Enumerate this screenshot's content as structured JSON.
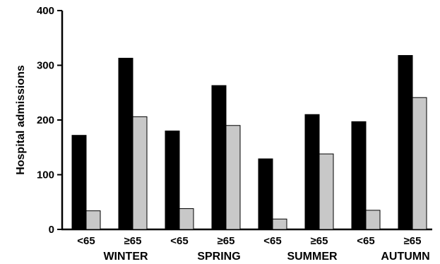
{
  "chart_data": {
    "type": "bar",
    "ylabel": "Hospital admissions",
    "ylim": [
      0,
      400
    ],
    "yticks": [
      "0",
      "100",
      "200",
      "300",
      "400"
    ],
    "groups": [
      {
        "season": "WINTER",
        "bars": [
          {
            "label": "<65",
            "black": 172,
            "gray": 34
          },
          {
            "label": "≥65",
            "black": 313,
            "gray": 206
          }
        ]
      },
      {
        "season": "SPRING",
        "bars": [
          {
            "label": "<65",
            "black": 180,
            "gray": 38
          },
          {
            "label": "≥65",
            "black": 263,
            "gray": 190
          }
        ]
      },
      {
        "season": "SUMMER",
        "bars": [
          {
            "label": "<65",
            "black": 129,
            "gray": 19
          },
          {
            "label": "≥65",
            "black": 210,
            "gray": 138
          }
        ]
      },
      {
        "season": "AUTUMN",
        "bars": [
          {
            "label": "<65",
            "black": 197,
            "gray": 35
          },
          {
            "label": "≥65",
            "black": 318,
            "gray": 241
          }
        ]
      }
    ],
    "colors": {
      "black_series": "#000000",
      "gray_series": "#c8c8c8"
    }
  }
}
